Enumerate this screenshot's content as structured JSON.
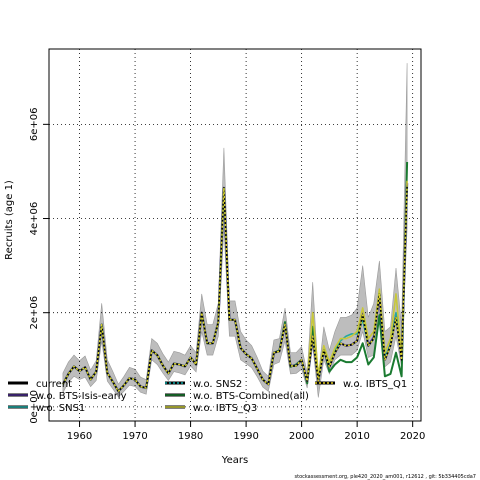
{
  "chart_data": {
    "type": "line",
    "xlabel": "Years",
    "ylabel": "Recruits (age 1)",
    "xlim": [
      1954.5,
      2021.5
    ],
    "ylim": [
      -300000,
      7600000
    ],
    "xticks": [
      1960,
      1970,
      1980,
      1990,
      2000,
      2010,
      2020
    ],
    "yticks": [
      {
        "v": 0,
        "label": "0e+00"
      },
      {
        "v": 2000000,
        "label": "2e+06"
      },
      {
        "v": 4000000,
        "label": "4e+06"
      },
      {
        "v": 6000000,
        "label": "6e+06"
      }
    ],
    "grid": true,
    "legend": [
      {
        "label": "current",
        "color": "#000000",
        "dash": "solid"
      },
      {
        "label": "w.o. BTS-Isis-early",
        "color": "#4a2d8c",
        "dash": "solid"
      },
      {
        "label": "w.o. SNS1",
        "color": "#24a8a2",
        "dash": "solid"
      },
      {
        "label": "w.o. SNS2",
        "color": "#0aa8a8",
        "dash": "dotted"
      },
      {
        "label": "w.o. BTS-Combined(all)",
        "color": "#1a7a30",
        "dash": "solid"
      },
      {
        "label": "w.o. IBTS_Q3",
        "color": "#c8c83a",
        "dash": "solid"
      },
      {
        "label": "w.o. IBTS_Q1",
        "color": "#e8d020",
        "dash": "dotted"
      }
    ],
    "x": [
      1957,
      1958,
      1959,
      1960,
      1961,
      1962,
      1963,
      1964,
      1965,
      1966,
      1967,
      1968,
      1969,
      1970,
      1971,
      1972,
      1973,
      1974,
      1975,
      1976,
      1977,
      1978,
      1979,
      1980,
      1981,
      1982,
      1983,
      1984,
      1985,
      1986,
      1987,
      1988,
      1989,
      1990,
      1991,
      1992,
      1993,
      1994,
      1995,
      1996,
      1997,
      1998,
      1999,
      2000,
      2001,
      2002,
      2003,
      2004,
      2005,
      2006,
      2007,
      2008,
      2009,
      2010,
      2011,
      2012,
      2013,
      2014,
      2015,
      2016,
      2017,
      2018,
      2019
    ],
    "band_lower": [
      300000,
      520000,
      650000,
      580000,
      630000,
      430000,
      560000,
      1400000,
      550000,
      380000,
      210000,
      330000,
      460000,
      430000,
      310000,
      270000,
      1000000,
      900000,
      720000,
      560000,
      750000,
      720000,
      680000,
      870000,
      740000,
      1600000,
      1100000,
      1100000,
      1500000,
      3800000,
      1500000,
      1500000,
      1000000,
      920000,
      830000,
      640000,
      420000,
      330000,
      900000,
      950000,
      1400000,
      700000,
      710000,
      800000,
      400000,
      1300000,
      200000,
      1000000,
      700000,
      1000000,
      1100000,
      1100000,
      1100000,
      1200000,
      1600000,
      1050000,
      1100000,
      2000000,
      850000,
      950000,
      1500000,
      850000,
      3800000
    ],
    "band_upper": [
      720000,
      950000,
      1100000,
      980000,
      1080000,
      780000,
      980000,
      2200000,
      1000000,
      750000,
      480000,
      650000,
      840000,
      800000,
      630000,
      580000,
      1450000,
      1350000,
      1130000,
      950000,
      1180000,
      1150000,
      1100000,
      1300000,
      1150000,
      2400000,
      1750000,
      1750000,
      2200000,
      5500000,
      2250000,
      2250000,
      1600000,
      1420000,
      1300000,
      1050000,
      760000,
      650000,
      1420000,
      1450000,
      2100000,
      1150000,
      1150000,
      1280000,
      720000,
      2650000,
      650000,
      1700000,
      1200000,
      1600000,
      1900000,
      1900000,
      1950000,
      2100000,
      3000000,
      1900000,
      2200000,
      3100000,
      1600000,
      1700000,
      2950000,
      1700000,
      7300000
    ],
    "series": [
      {
        "name": "current",
        "values": [
          480000,
          700000,
          860000,
          760000,
          840000,
          580000,
          750000,
          1750000,
          720000,
          530000,
          330000,
          460000,
          610000,
          580000,
          430000,
          400000,
          1200000,
          1100000,
          880000,
          710000,
          920000,
          900000,
          860000,
          1050000,
          900000,
          2000000,
          1350000,
          1350000,
          1800000,
          4650000,
          1850000,
          1850000,
          1250000,
          1120000,
          1030000,
          810000,
          580000,
          480000,
          1150000,
          1180000,
          1750000,
          870000,
          870000,
          1000000,
          550000,
          1500000,
          550000,
          1200000,
          850000,
          1150000,
          1350000,
          1300000,
          1320000,
          1400000,
          1950000,
          1300000,
          1450000,
          2400000,
          1000000,
          1300000,
          1900000,
          1000000,
          4700000
        ]
      },
      {
        "name": "w.o. BTS-Isis-early",
        "values": [
          480000,
          700000,
          860000,
          760000,
          840000,
          580000,
          750000,
          1750000,
          720000,
          530000,
          330000,
          460000,
          610000,
          580000,
          430000,
          400000,
          1200000,
          1100000,
          880000,
          710000,
          920000,
          900000,
          860000,
          1050000,
          900000,
          2000000,
          1350000,
          1350000,
          1800000,
          4650000,
          1850000,
          1850000,
          1250000,
          1120000,
          1030000,
          810000,
          580000,
          480000,
          1150000,
          1180000,
          1750000,
          870000,
          870000,
          1000000,
          550000,
          1500000,
          550000,
          1200000,
          850000,
          1150000,
          1350000,
          1300000,
          1320000,
          1400000,
          1980000,
          1300000,
          1480000,
          2380000,
          1000000,
          1320000,
          1960000,
          1030000,
          4750000
        ]
      },
      {
        "name": "w.o. SNS1",
        "values": [
          480000,
          700000,
          860000,
          760000,
          840000,
          580000,
          750000,
          1750000,
          720000,
          530000,
          330000,
          460000,
          610000,
          580000,
          430000,
          400000,
          1200000,
          1100000,
          880000,
          710000,
          920000,
          900000,
          860000,
          1050000,
          900000,
          2000000,
          1350000,
          1350000,
          1800000,
          4650000,
          1850000,
          1850000,
          1250000,
          1120000,
          1030000,
          810000,
          580000,
          480000,
          1150000,
          1180000,
          1750000,
          870000,
          870000,
          1000000,
          550000,
          1500000,
          550000,
          1200000,
          870000,
          1200000,
          1400000,
          1500000,
          1550000,
          1550000,
          1850000,
          1300000,
          1450000,
          2450000,
          1050000,
          1320000,
          2000000,
          1050000,
          4700000
        ]
      },
      {
        "name": "w.o. SNS2",
        "values": [
          480000,
          700000,
          860000,
          760000,
          840000,
          580000,
          750000,
          1750000,
          720000,
          530000,
          330000,
          460000,
          610000,
          580000,
          430000,
          400000,
          1200000,
          1100000,
          880000,
          710000,
          920000,
          900000,
          860000,
          1050000,
          900000,
          2000000,
          1350000,
          1350000,
          1800000,
          4650000,
          1850000,
          1850000,
          1250000,
          1120000,
          1030000,
          810000,
          580000,
          480000,
          1150000,
          1180000,
          1750000,
          870000,
          870000,
          1000000,
          550000,
          1500000,
          550000,
          1200000,
          850000,
          1150000,
          1350000,
          1300000,
          1320000,
          1400000,
          1950000,
          1300000,
          1450000,
          2400000,
          1000000,
          1300000,
          1900000,
          1000000,
          4700000
        ]
      },
      {
        "name": "w.o. BTS-Combined(all)",
        "values": [
          480000,
          700000,
          860000,
          760000,
          840000,
          580000,
          750000,
          1750000,
          720000,
          530000,
          330000,
          460000,
          610000,
          580000,
          430000,
          400000,
          1200000,
          1100000,
          880000,
          710000,
          920000,
          900000,
          860000,
          1050000,
          900000,
          2000000,
          1350000,
          1350000,
          1800000,
          4650000,
          1850000,
          1850000,
          1250000,
          1120000,
          1030000,
          810000,
          580000,
          480000,
          1150000,
          1200000,
          1800000,
          850000,
          900000,
          1000000,
          500000,
          1700000,
          550000,
          1250000,
          750000,
          900000,
          1000000,
          950000,
          950000,
          1050000,
          1350000,
          900000,
          1050000,
          1950000,
          650000,
          700000,
          1150000,
          650000,
          5200000
        ]
      },
      {
        "name": "w.o. IBTS_Q3",
        "values": [
          480000,
          700000,
          860000,
          760000,
          840000,
          580000,
          750000,
          1750000,
          720000,
          530000,
          330000,
          460000,
          610000,
          580000,
          430000,
          400000,
          1200000,
          1100000,
          880000,
          710000,
          920000,
          900000,
          860000,
          1050000,
          900000,
          2000000,
          1350000,
          1350000,
          1800000,
          4650000,
          1850000,
          1850000,
          1250000,
          1120000,
          1030000,
          810000,
          580000,
          480000,
          1150000,
          1180000,
          1750000,
          870000,
          870000,
          1000000,
          550000,
          2000000,
          700000,
          1300000,
          950000,
          1250000,
          1450000,
          1450000,
          1500000,
          1600000,
          2100000,
          1450000,
          1600000,
          2500000,
          1150000,
          1450000,
          2400000,
          1100000,
          4800000
        ]
      },
      {
        "name": "w.o. IBTS_Q1",
        "values": [
          480000,
          700000,
          860000,
          760000,
          840000,
          580000,
          750000,
          1750000,
          720000,
          530000,
          330000,
          460000,
          610000,
          580000,
          430000,
          400000,
          1200000,
          1100000,
          880000,
          710000,
          920000,
          900000,
          860000,
          1050000,
          900000,
          2000000,
          1350000,
          1350000,
          1800000,
          4650000,
          1850000,
          1850000,
          1250000,
          1120000,
          1030000,
          810000,
          580000,
          480000,
          1150000,
          1180000,
          1750000,
          870000,
          870000,
          1000000,
          550000,
          1500000,
          550000,
          1200000,
          850000,
          1150000,
          1350000,
          1300000,
          1320000,
          1400000,
          1950000,
          1300000,
          1450000,
          2400000,
          1000000,
          1300000,
          1900000,
          1000000,
          4700000
        ]
      }
    ]
  },
  "footer_text": "stockassessment.org,  ple420_2020_am001,  r12612 ,  git: 5b334405cda7"
}
